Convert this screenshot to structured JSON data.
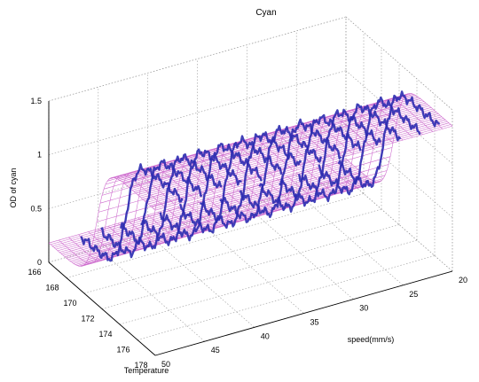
{
  "chart_data": {
    "type": "surface",
    "title": "Cyan",
    "xlabel": "Temperature",
    "ylabel": "speed(mm/s)",
    "zlabel": "OD of cyan",
    "x_ticks": [
      166,
      168,
      170,
      172,
      174,
      176,
      178
    ],
    "y_ticks": [
      20,
      25,
      30,
      35,
      40,
      45,
      50
    ],
    "z_ticks": [
      0,
      0.5,
      1,
      1.5
    ],
    "z_tick_labels": [
      "0",
      "0.5",
      "1",
      "1.5"
    ],
    "xlim": [
      166,
      178
    ],
    "ylim": [
      20,
      50
    ],
    "zlim": [
      0,
      1.5
    ],
    "grid": true,
    "surface": {
      "model": "z = 0.18 + 1.17 / (1 + exp(-(T - 171.4) / 0.55))",
      "low_od": 0.18,
      "high_od": 1.35,
      "transition_temperature": 171.4,
      "mesh_color": "#cc66cc"
    },
    "measured_series": {
      "name": "",
      "color": "#2b2bb0",
      "speeds": [
        21,
        23,
        25,
        27,
        29,
        31,
        33,
        35,
        37,
        39,
        41,
        43,
        45,
        47
      ],
      "temperature_range": [
        166,
        178
      ]
    }
  }
}
